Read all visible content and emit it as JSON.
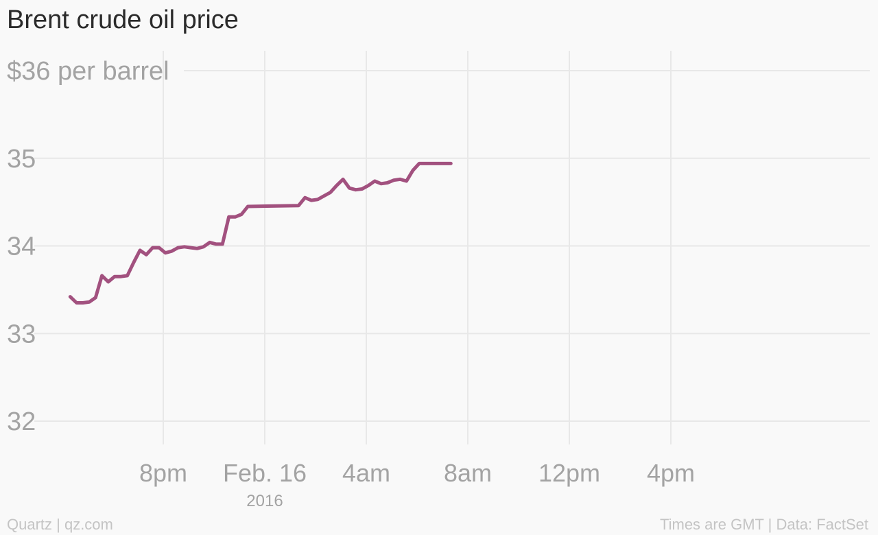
{
  "title": "Brent crude oil price",
  "footer": {
    "credit": "Quartz | qz.com",
    "note": "Times are GMT | Data: FactSet"
  },
  "colors": {
    "line": "#a2517f",
    "grid": "#e8e8e8",
    "axis_text": "#a3a3a3",
    "background": "#f9f9f9"
  },
  "chart_data": {
    "type": "line",
    "title": "Brent crude oil price",
    "xlabel": "",
    "ylabel": "$36 per barrel",
    "ylim": [
      32,
      36
    ],
    "xlim": [
      "2016-02-15 15:00",
      "2016-02-16 23:00"
    ],
    "grid": true,
    "y_ticks": [
      {
        "value": 36,
        "label": "$36 per barrel"
      },
      {
        "value": 35,
        "label": "35"
      },
      {
        "value": 34,
        "label": "34"
      },
      {
        "value": 33,
        "label": "33"
      },
      {
        "value": 32,
        "label": "32"
      }
    ],
    "x_ticks": [
      {
        "value": "2016-02-15 20:00",
        "label": "8pm",
        "sublabel": ""
      },
      {
        "value": "2016-02-16 00:00",
        "label": "Feb. 16",
        "sublabel": "2016"
      },
      {
        "value": "2016-02-16 04:00",
        "label": "4am",
        "sublabel": ""
      },
      {
        "value": "2016-02-16 08:00",
        "label": "8am",
        "sublabel": ""
      },
      {
        "value": "2016-02-16 12:00",
        "label": "12pm",
        "sublabel": ""
      },
      {
        "value": "2016-02-16 16:00",
        "label": "4pm",
        "sublabel": ""
      }
    ],
    "series": [
      {
        "x": [
          "2016-02-15 16:20",
          "2016-02-15 16:35",
          "2016-02-15 16:50",
          "2016-02-15 17:05",
          "2016-02-15 17:20",
          "2016-02-15 17:35",
          "2016-02-15 17:50",
          "2016-02-15 18:05",
          "2016-02-15 18:20",
          "2016-02-15 18:35",
          "2016-02-15 18:50",
          "2016-02-15 19:05",
          "2016-02-15 19:20",
          "2016-02-15 19:35",
          "2016-02-15 19:50",
          "2016-02-15 20:05",
          "2016-02-15 20:20",
          "2016-02-15 20:35",
          "2016-02-15 20:50",
          "2016-02-15 21:05",
          "2016-02-15 21:20",
          "2016-02-15 21:35",
          "2016-02-15 21:50",
          "2016-02-15 22:05",
          "2016-02-15 22:20",
          "2016-02-15 22:35",
          "2016-02-15 22:50",
          "2016-02-15 23:05",
          "2016-02-15 23:20",
          "2016-02-16 01:20",
          "2016-02-16 01:35",
          "2016-02-16 01:50",
          "2016-02-16 02:05",
          "2016-02-16 02:20",
          "2016-02-16 02:35",
          "2016-02-16 02:50",
          "2016-02-16 03:05",
          "2016-02-16 03:20",
          "2016-02-16 03:35",
          "2016-02-16 03:50",
          "2016-02-16 04:05",
          "2016-02-16 04:20",
          "2016-02-16 04:35",
          "2016-02-16 04:50",
          "2016-02-16 05:05",
          "2016-02-16 05:20",
          "2016-02-16 05:35",
          "2016-02-16 05:50",
          "2016-02-16 06:05",
          "2016-02-16 06:20",
          "2016-02-16 06:35",
          "2016-02-16 06:50",
          "2016-02-16 07:05",
          "2016-02-16 07:20"
        ],
        "values": [
          33.42,
          33.35,
          33.35,
          33.36,
          33.41,
          33.66,
          33.59,
          33.65,
          33.65,
          33.66,
          33.81,
          33.95,
          33.9,
          33.98,
          33.98,
          33.92,
          33.94,
          33.98,
          33.99,
          33.98,
          33.97,
          33.99,
          34.04,
          34.02,
          34.02,
          34.33,
          34.33,
          34.36,
          34.45,
          34.46,
          34.55,
          34.52,
          34.53,
          34.57,
          34.61,
          34.69,
          34.76,
          34.66,
          34.64,
          34.65,
          34.69,
          34.74,
          34.71,
          34.72,
          34.75,
          34.76,
          34.74,
          34.86,
          34.94,
          34.94,
          34.94,
          34.94,
          34.94,
          34.94
        ]
      }
    ]
  }
}
